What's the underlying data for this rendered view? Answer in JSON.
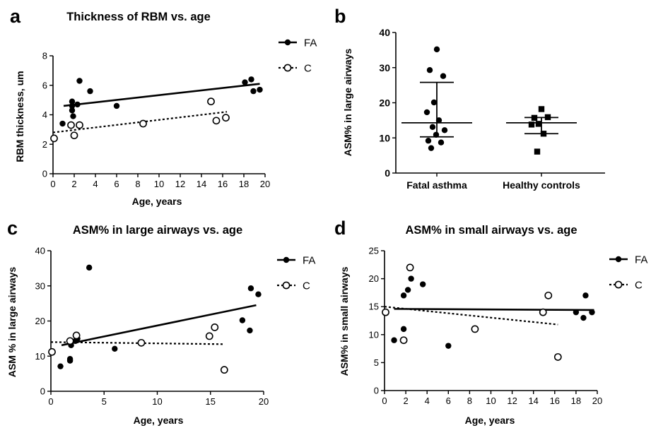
{
  "chart_data": [
    {
      "panel": "a",
      "type": "scatter",
      "title": "Thickness of RBM vs. age",
      "xlabel": "Age, years",
      "ylabel": "RBM thickness, um",
      "xlim": [
        0,
        20
      ],
      "ylim": [
        0,
        8
      ],
      "xticks": [
        0,
        2,
        4,
        6,
        8,
        10,
        12,
        14,
        16,
        18,
        20
      ],
      "yticks": [
        0,
        2,
        4,
        6,
        8
      ],
      "legend": "top-right",
      "series": [
        {
          "name": "FA",
          "marker": "filled-circle",
          "points": [
            [
              0.9,
              3.4
            ],
            [
              1.8,
              4.6
            ],
            [
              1.8,
              4.9
            ],
            [
              1.8,
              4.3
            ],
            [
              1.9,
              3.9
            ],
            [
              2.3,
              4.7
            ],
            [
              2.5,
              6.3
            ],
            [
              3.5,
              5.6
            ],
            [
              6.0,
              4.6
            ],
            [
              18.1,
              6.2
            ],
            [
              18.7,
              6.4
            ],
            [
              18.9,
              5.6
            ],
            [
              19.5,
              5.7
            ]
          ],
          "trend": [
            [
              1.0,
              4.6
            ],
            [
              19.5,
              6.1
            ]
          ]
        },
        {
          "name": "C",
          "marker": "open-circle",
          "points": [
            [
              0.1,
              2.4
            ],
            [
              1.7,
              3.3
            ],
            [
              2.0,
              2.6
            ],
            [
              2.5,
              3.3
            ],
            [
              8.5,
              3.4
            ],
            [
              14.9,
              4.9
            ],
            [
              15.4,
              3.6
            ],
            [
              16.3,
              3.8
            ]
          ],
          "trend": [
            [
              0.0,
              2.8
            ],
            [
              16.4,
              4.2
            ]
          ]
        }
      ]
    },
    {
      "panel": "b",
      "type": "scatter",
      "title": "",
      "xlabel": "",
      "ylabel": "ASM% in large airways",
      "ylim": [
        0,
        40
      ],
      "yticks": [
        0,
        10,
        20,
        30,
        40
      ],
      "categories": [
        "Fatal asthma",
        "Healthy controls"
      ],
      "groups": [
        {
          "category": "Fatal asthma",
          "marker": "filled-circle",
          "points": [
            35.2,
            29.3,
            27.6,
            20.1,
            17.3,
            15.0,
            13.1,
            12.2,
            10.9,
            9.2,
            8.7,
            7.1
          ],
          "median": 14.3,
          "iqr": [
            10.3,
            25.8
          ]
        },
        {
          "category": "Healthy controls",
          "marker": "filled-square",
          "points": [
            18.2,
            15.7,
            15.9,
            14.0,
            13.8,
            11.2,
            6.1
          ],
          "median": 14.3,
          "iqr": [
            11.2,
            15.8
          ]
        }
      ]
    },
    {
      "panel": "c",
      "type": "scatter",
      "title": "ASM% in large airways vs. age",
      "xlabel": "Age, years",
      "ylabel": "ASM % in large airways",
      "xlim": [
        0,
        20
      ],
      "ylim": [
        0,
        40
      ],
      "xticks": [
        0,
        5,
        10,
        15,
        20
      ],
      "yticks": [
        0,
        10,
        20,
        30,
        40
      ],
      "legend": "top-right",
      "series": [
        {
          "name": "FA",
          "marker": "filled-circle",
          "points": [
            [
              0.9,
              7.1
            ],
            [
              1.8,
              9.2
            ],
            [
              1.8,
              8.7
            ],
            [
              1.9,
              13.1
            ],
            [
              2.3,
              14.3
            ],
            [
              2.5,
              15.0
            ],
            [
              3.6,
              35.2
            ],
            [
              6.0,
              12.1
            ],
            [
              18.0,
              20.2
            ],
            [
              18.7,
              17.3
            ],
            [
              18.8,
              29.3
            ],
            [
              19.5,
              27.6
            ]
          ],
          "trend": [
            [
              1.0,
              13.1
            ],
            [
              19.3,
              24.5
            ]
          ]
        },
        {
          "name": "C",
          "marker": "open-circle",
          "points": [
            [
              0.1,
              11.2
            ],
            [
              1.8,
              14.3
            ],
            [
              2.4,
              15.9
            ],
            [
              8.5,
              13.8
            ],
            [
              14.9,
              15.7
            ],
            [
              15.4,
              18.2
            ],
            [
              16.3,
              6.1
            ]
          ],
          "trend": [
            [
              0.0,
              14.0
            ],
            [
              16.3,
              13.4
            ]
          ]
        }
      ]
    },
    {
      "panel": "d",
      "type": "scatter",
      "title": "ASM% in small airways vs. age",
      "xlabel": "Age, years",
      "ylabel": "ASM% in small airways",
      "xlim": [
        0,
        20
      ],
      "ylim": [
        0,
        25
      ],
      "xticks": [
        0,
        2,
        4,
        6,
        8,
        10,
        12,
        14,
        16,
        18,
        20
      ],
      "yticks": [
        0,
        5,
        10,
        15,
        20,
        25
      ],
      "legend": "top-right",
      "series": [
        {
          "name": "FA",
          "marker": "filled-circle",
          "points": [
            [
              0.9,
              9.0
            ],
            [
              1.8,
              11.0
            ],
            [
              1.8,
              17.0
            ],
            [
              2.2,
              18.0
            ],
            [
              2.5,
              20.0
            ],
            [
              3.6,
              19.0
            ],
            [
              6.0,
              8.0
            ],
            [
              18.0,
              14.0
            ],
            [
              18.7,
              13.0
            ],
            [
              18.9,
              17.0
            ],
            [
              19.5,
              14.0
            ]
          ],
          "trend": [
            [
              0.9,
              14.6
            ],
            [
              19.7,
              14.4
            ]
          ]
        },
        {
          "name": "C",
          "marker": "open-circle",
          "points": [
            [
              0.1,
              14.0
            ],
            [
              1.8,
              9.0
            ],
            [
              2.4,
              22.0
            ],
            [
              8.5,
              11.0
            ],
            [
              14.9,
              14.0
            ],
            [
              15.4,
              17.0
            ],
            [
              16.3,
              6.0
            ]
          ],
          "trend": [
            [
              0.0,
              15.0
            ],
            [
              16.3,
              11.8
            ]
          ]
        }
      ]
    }
  ]
}
